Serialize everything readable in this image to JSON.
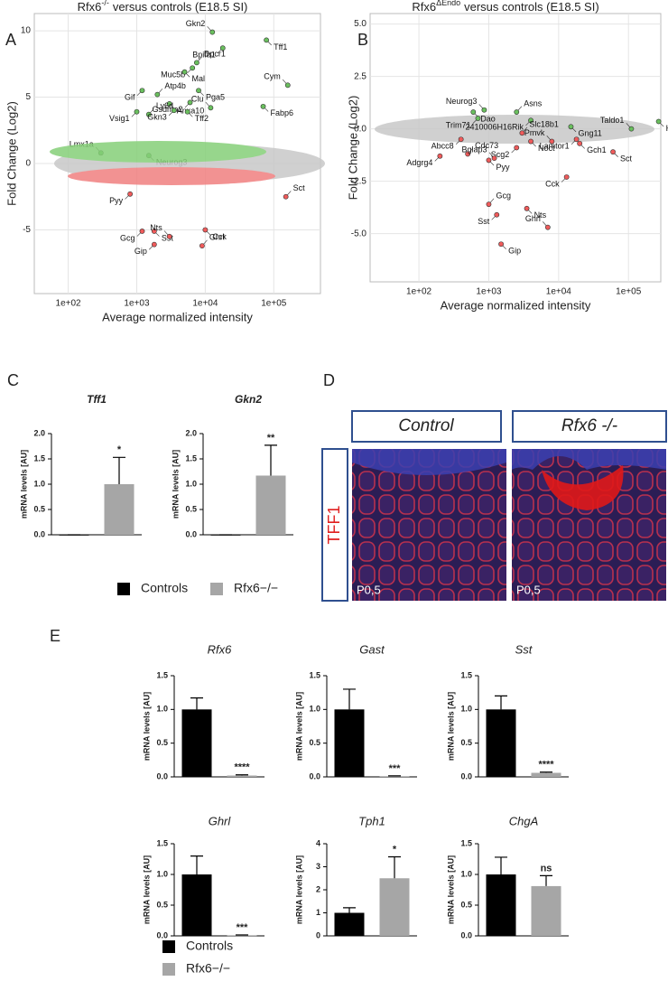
{
  "chart_data": [
    {
      "type": "scatter",
      "panel": "A",
      "title": "Rfx6",
      "title_superscript": "-/-",
      "title_suffix": "versus controls (E18.5 SI)",
      "xlabel": "Average normalized intensity",
      "ylabel": "Fold Change (Log2)",
      "xscale": "log",
      "grid": true,
      "xlim": [
        32,
        480000
      ],
      "ylim": [
        -9.8,
        11.3
      ],
      "xticks": [
        {
          "value": 100,
          "label": "1e+02"
        },
        {
          "value": 1000,
          "label": "1e+03"
        },
        {
          "value": 10000,
          "label": "1e+04"
        },
        {
          "value": 100000,
          "label": "1e+05"
        }
      ],
      "yticks": [
        -5,
        0,
        5,
        10
      ],
      "labels": [
        "Gkn2",
        "Tff1",
        "Bpifb1",
        "Dpcr1",
        "Muc5b",
        "Mal",
        "Cym",
        "Pga5",
        "Gif",
        "Atp4b",
        "Gsdma2",
        "Anxa10",
        "Clu",
        "Fabp6",
        "Vsig1",
        "Ly6d",
        "Gkn3",
        "Tff2",
        "Lmx1a",
        "Neurog3",
        "Pyy",
        "Sct",
        "Gcg",
        "Sst",
        "Nts",
        "Cck",
        "Gip",
        "Ghrl"
      ],
      "x": [
        12700,
        78000,
        18000,
        7500,
        6500,
        5000,
        160000,
        8000,
        1200,
        2000,
        6000,
        3000,
        12000,
        70000,
        1000,
        1500,
        3500,
        5500,
        300,
        1500,
        800,
        150000,
        1200,
        1800,
        3000,
        10000,
        1800,
        9000
      ],
      "y": [
        9.9,
        9.3,
        8.7,
        7.6,
        7.2,
        6.9,
        5.9,
        5.5,
        5.5,
        5.2,
        4.6,
        4.5,
        4.2,
        4.3,
        3.9,
        3.7,
        4.0,
        3.9,
        0.8,
        0.6,
        -2.3,
        -2.5,
        -5.1,
        -5.1,
        -5.5,
        -5.0,
        -6.1,
        -6.2
      ],
      "colors": [
        "#6abf5e",
        "#6abf5e",
        "#6abf5e",
        "#6abf5e",
        "#6abf5e",
        "#6abf5e",
        "#6abf5e",
        "#6abf5e",
        "#6abf5e",
        "#6abf5e",
        "#6abf5e",
        "#6abf5e",
        "#6abf5e",
        "#6abf5e",
        "#6abf5e",
        "#6abf5e",
        "#6abf5e",
        "#6abf5e",
        "#6abf5e",
        "#6abf5e",
        "#ef5b5b",
        "#ef5b5b",
        "#ef5b5b",
        "#ef5b5b",
        "#ef5b5b",
        "#ef5b5b",
        "#ef5b5b",
        "#ef5b5b"
      ]
    },
    {
      "type": "scatter",
      "panel": "B",
      "title": "Rfx6",
      "title_superscript": "ΔEndo",
      "title_suffix": "versus controls (E18.5 SI)",
      "xlabel": "Average normalized intensity",
      "ylabel": "Fold Change (Log2)",
      "xscale": "log",
      "grid": true,
      "xlim": [
        20,
        290000
      ],
      "ylim": [
        -7.3,
        5.5
      ],
      "xticks": [
        {
          "value": 100,
          "label": "1e+02"
        },
        {
          "value": 1000,
          "label": "1e+03"
        },
        {
          "value": 10000,
          "label": "1e+04"
        },
        {
          "value": 100000,
          "label": "1e+05"
        }
      ],
      "yticks": [
        {
          "value": 5,
          "label": "5.0"
        },
        {
          "value": 2.5,
          "label": "2.5"
        },
        {
          "value": 0,
          "label": "0.0"
        },
        {
          "value": -2.5,
          "label": "-2.5"
        },
        {
          "value": -5,
          "label": "-5.0"
        }
      ],
      "labels": [
        "Neurog3",
        "Dao",
        "Trim71",
        "Asns",
        "2410006H16Rik",
        "Gng11",
        "Taldo1",
        "H19",
        "Abcc8",
        "Slc18b1",
        "Lamtor1",
        "Noct",
        "Pmvk",
        "Gch1",
        "Scg2",
        "Cdc73",
        "Adgrg4",
        "Pyy",
        "Bglap3",
        "Sct",
        "Cck",
        "Gcg",
        "Sst",
        "Nts",
        "Ghrl",
        "Gip"
      ],
      "x": [
        860,
        600,
        700,
        2500,
        4000,
        15000,
        110000,
        270000,
        400,
        3000,
        18000,
        4000,
        8000,
        20000,
        2500,
        500,
        200,
        1000,
        1200,
        60000,
        13000,
        1000,
        1300,
        3500,
        7000,
        1500
      ],
      "y": [
        0.9,
        0.8,
        0.5,
        0.8,
        0.4,
        0.1,
        0.0,
        0.35,
        -0.5,
        -0.2,
        -0.5,
        -0.6,
        -0.6,
        -0.7,
        -0.9,
        -1.2,
        -1.3,
        -1.5,
        -1.4,
        -1.1,
        -2.3,
        -3.6,
        -4.1,
        -3.8,
        -4.7,
        -5.5
      ],
      "colors": [
        "#6abf5e",
        "#6abf5e",
        "#6abf5e",
        "#6abf5e",
        "#6abf5e",
        "#6abf5e",
        "#6abf5e",
        "#6abf5e",
        "#ef5b5b",
        "#ef5b5b",
        "#ef5b5b",
        "#ef5b5b",
        "#ef5b5b",
        "#ef5b5b",
        "#ef5b5b",
        "#ef5b5b",
        "#ef5b5b",
        "#ef5b5b",
        "#ef5b5b",
        "#ef5b5b",
        "#ef5b5b",
        "#ef5b5b",
        "#ef5b5b",
        "#ef5b5b",
        "#ef5b5b",
        "#ef5b5b"
      ]
    },
    {
      "type": "bar",
      "panel": "C",
      "title": "Tff1",
      "ylabel": "mRNA levels [AU]",
      "categories": [
        null,
        null
      ],
      "values": [
        0,
        1.0
      ],
      "errors": [
        0,
        0.53
      ],
      "colors": [
        "#000000",
        "#a6a6a6"
      ],
      "significance": "*",
      "ylim": [
        0,
        2
      ],
      "yticks": [
        {
          "value": 0,
          "label": "0.0"
        },
        {
          "value": 0.5,
          "label": "0.5"
        },
        {
          "value": 1,
          "label": "1.0"
        },
        {
          "value": 1.5,
          "label": "1.5"
        },
        {
          "value": 2,
          "label": "2.0"
        }
      ]
    },
    {
      "type": "bar",
      "title": "Gkn2",
      "ylabel": "mRNA levels [AU]",
      "categories": [
        null,
        null
      ],
      "values": [
        0,
        1.17
      ],
      "errors": [
        0,
        0.6
      ],
      "colors": [
        "#000000",
        "#a6a6a6"
      ],
      "significance": "**",
      "ylim": [
        0,
        2
      ],
      "yticks": [
        {
          "value": 0,
          "label": "0.0"
        },
        {
          "value": 0.5,
          "label": "0.5"
        },
        {
          "value": 1,
          "label": "1.0"
        },
        {
          "value": 1.5,
          "label": "1.5"
        },
        {
          "value": 2,
          "label": "2.0"
        }
      ]
    },
    {
      "type": "bar",
      "panel": "E",
      "title": "Rfx6",
      "ylabel": "mRNA levels [AU]",
      "categories": [
        null,
        null
      ],
      "values": [
        1.0,
        0.02
      ],
      "errors": [
        0.17,
        0.01
      ],
      "colors": [
        "#000000",
        "#a6a6a6"
      ],
      "significance": "****",
      "ylim": [
        0,
        1.5
      ],
      "yticks": [
        {
          "value": 0,
          "label": "0.0"
        },
        {
          "value": 0.5,
          "label": "0.5"
        },
        {
          "value": 1,
          "label": "1.0"
        },
        {
          "value": 1.5,
          "label": "1.5"
        }
      ]
    },
    {
      "type": "bar",
      "title": "Gast",
      "ylabel": "mRNA levels [AU]",
      "categories": [
        null,
        null
      ],
      "values": [
        1.0,
        0.01
      ],
      "errors": [
        0.3,
        0.005
      ],
      "colors": [
        "#000000",
        "#a6a6a6"
      ],
      "significance": "***",
      "ylim": [
        0,
        1.5
      ],
      "yticks": [
        {
          "value": 0,
          "label": "0.0"
        },
        {
          "value": 0.5,
          "label": "0.5"
        },
        {
          "value": 1,
          "label": "1.0"
        },
        {
          "value": 1.5,
          "label": "1.5"
        }
      ]
    },
    {
      "type": "bar",
      "title": "Sst",
      "ylabel": "mRNA levels [AU]",
      "categories": [
        null,
        null
      ],
      "values": [
        1.0,
        0.06
      ],
      "errors": [
        0.2,
        0.01
      ],
      "colors": [
        "#000000",
        "#a6a6a6"
      ],
      "significance": "****",
      "ylim": [
        0,
        1.5
      ],
      "yticks": [
        {
          "value": 0,
          "label": "0.0"
        },
        {
          "value": 0.5,
          "label": "0.5"
        },
        {
          "value": 1,
          "label": "1.0"
        },
        {
          "value": 1.5,
          "label": "1.5"
        }
      ]
    },
    {
      "type": "bar",
      "title": "Ghrl",
      "ylabel": "mRNA levels [AU]",
      "categories": [
        null,
        null
      ],
      "values": [
        1.0,
        0.01
      ],
      "errors": [
        0.3,
        0.005
      ],
      "colors": [
        "#000000",
        "#a6a6a6"
      ],
      "significance": "***",
      "ylim": [
        0,
        1.5
      ],
      "yticks": [
        {
          "value": 0,
          "label": "0.0"
        },
        {
          "value": 0.5,
          "label": "0.5"
        },
        {
          "value": 1,
          "label": "1.0"
        },
        {
          "value": 1.5,
          "label": "1.5"
        }
      ]
    },
    {
      "type": "bar",
      "title": "Tph1",
      "ylabel": "mRNA levels [AU]",
      "categories": [
        null,
        null
      ],
      "values": [
        1.0,
        2.5
      ],
      "errors": [
        0.22,
        0.93
      ],
      "colors": [
        "#000000",
        "#a6a6a6"
      ],
      "significance": "*",
      "ylim": [
        0,
        4
      ],
      "yticks": [
        0,
        1,
        2,
        3,
        4
      ]
    },
    {
      "type": "bar",
      "title": "ChgA",
      "ylabel": "mRNA levels [AU]",
      "categories": [
        null,
        null
      ],
      "values": [
        1.0,
        0.81
      ],
      "errors": [
        0.28,
        0.17
      ],
      "colors": [
        "#000000",
        "#a6a6a6"
      ],
      "significance": "ns",
      "ylim": [
        0,
        1.5
      ],
      "yticks": [
        {
          "value": 0,
          "label": "0.0"
        },
        {
          "value": 0.5,
          "label": "0.5"
        },
        {
          "value": 1,
          "label": "1.0"
        },
        {
          "value": 1.5,
          "label": "1.5"
        }
      ]
    }
  ],
  "legend": {
    "names": [
      "Controls",
      "Rfx6−/−"
    ],
    "colors": [
      "#000000",
      "#a6a6a6"
    ]
  },
  "image_panel": {
    "panel": "D",
    "columns": [
      "Control",
      "Rfx6 -/-"
    ],
    "row_label": "TFF1",
    "stage_labels": [
      "P0,5",
      "P0,5"
    ]
  }
}
